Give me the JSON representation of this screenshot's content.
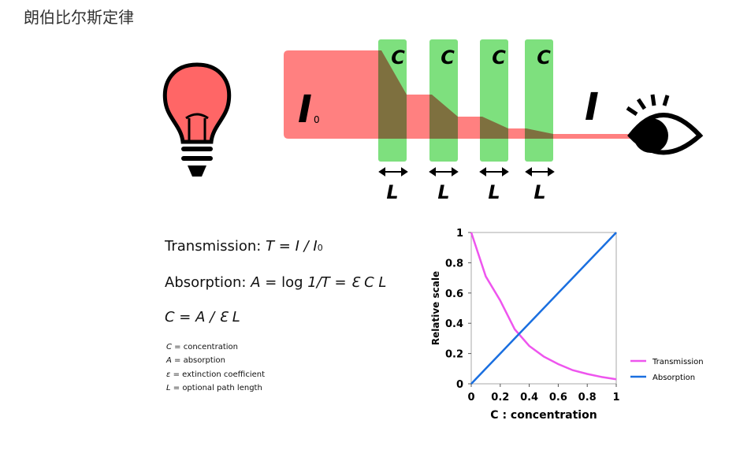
{
  "title": "朗伯比尔斯定律",
  "diagram": {
    "concentration_labels": [
      "C",
      "C",
      "C",
      "C"
    ],
    "length_labels": [
      "L",
      "L",
      "L",
      "L"
    ],
    "incident_label": [
      "I",
      "0"
    ],
    "transmitted_label": "I"
  },
  "formulas": [
    [
      "Transmission: ",
      "T = I / I",
      "0"
    ],
    [
      "Absorption: ",
      "A",
      " = log ",
      "1/T = ",
      "Ɛ C L"
    ],
    [
      "C = A / Ɛ L"
    ]
  ],
  "notes": [
    [
      "C",
      " = concentration"
    ],
    [
      "A",
      " = absorption"
    ],
    [
      "ε",
      " = extinction coefficient"
    ],
    [
      "L",
      " = optional path length"
    ]
  ],
  "chart_data": {
    "type": "line",
    "x": [
      0,
      0.1,
      0.2,
      0.3,
      0.4,
      0.5,
      0.6,
      0.7,
      0.8,
      0.9,
      1
    ],
    "series": [
      {
        "name": "Transmission",
        "color": "#ee55ee",
        "values": [
          1,
          0.71,
          0.55,
          0.36,
          0.25,
          0.18,
          0.13,
          0.09,
          0.065,
          0.045,
          0.03
        ]
      },
      {
        "name": "Absorption",
        "color": "#1a6fe0",
        "values": [
          0,
          0.1,
          0.2,
          0.3,
          0.4,
          0.5,
          0.6,
          0.7,
          0.8,
          0.9,
          1
        ]
      }
    ],
    "xlim": [
      0,
      1
    ],
    "ylim": [
      0,
      1
    ],
    "xticks": [
      0,
      0.2,
      0.4,
      0.6,
      0.8,
      1
    ],
    "yticks": [
      0,
      0.2,
      0.4,
      0.6,
      0.8,
      1
    ],
    "xlabel": "C : concentration",
    "ylabel": "Relative scale",
    "legend": "right"
  }
}
